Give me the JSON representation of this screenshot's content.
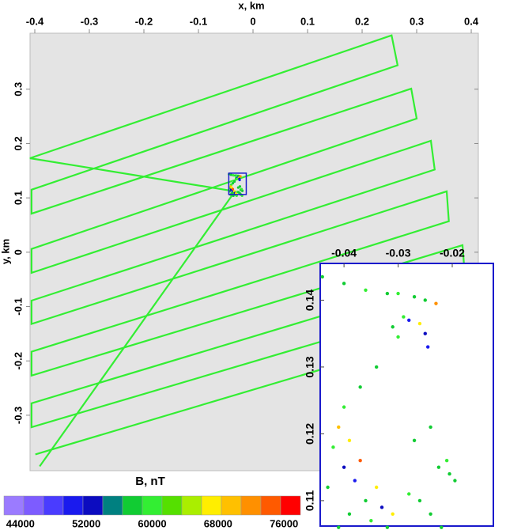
{
  "chart_data": [
    {
      "type": "line",
      "xlabel": "x, km",
      "ylabel": "y, km",
      "xlim": [
        -0.4087,
        0.413
      ],
      "ylim": [
        -0.402,
        0.403
      ],
      "xticks": [
        -0.4,
        -0.3,
        -0.2,
        -0.1,
        0,
        0.1,
        0.2,
        0.3,
        0.4
      ],
      "yticks": [
        -0.3,
        -0.2,
        -0.1,
        0,
        0.1,
        0.2,
        0.3
      ],
      "series": [
        {
          "color": "#33ee33",
          "x": [
            -0.391,
            -0.033,
            -0.409,
            0.254,
            0.265,
            -0.406,
            -0.406,
            0.29,
            0.3,
            -0.406,
            -0.406,
            0.326,
            0.333,
            -0.406,
            -0.406,
            0.355,
            0.359,
            -0.406,
            -0.406,
            0.384,
            0.388,
            -0.406,
            -0.406,
            0.406,
            0.406,
            -0.399
          ],
          "y": [
            -0.394,
            0.112,
            0.173,
            0.399,
            0.344,
            0.115,
            0.071,
            0.301,
            0.246,
            0.006,
            -0.038,
            0.205,
            0.152,
            -0.089,
            -0.132,
            0.112,
            0.057,
            -0.183,
            -0.227,
            0.013,
            -0.038,
            -0.278,
            -0.322,
            -0.081,
            -0.132,
            -0.372
          ]
        }
      ],
      "colorbar": {
        "label": "B, nT",
        "bins": [
          42000,
          44400,
          46800,
          49200,
          51600,
          54000,
          56400,
          58800,
          61200,
          63600,
          66000,
          68400,
          70800,
          73200,
          75600,
          78000
        ],
        "colors": [
          "#9b7bff",
          "#7d5cff",
          "#4a3cff",
          "#1a1aee",
          "#0c0cc0",
          "#008080",
          "#11cc33",
          "#33ee33",
          "#55e000",
          "#aaee00",
          "#ffee00",
          "#ffc000",
          "#ff9000",
          "#ff5a00",
          "#ff0000"
        ],
        "ticks": [
          44000,
          52000,
          60000,
          68000,
          76000
        ]
      }
    },
    {
      "type": "scatter",
      "xlim": [
        -0.0444,
        -0.0124
      ],
      "ylim": [
        0.1062,
        0.1455
      ],
      "xticks": [
        -0.04,
        -0.03,
        -0.02
      ],
      "yticks": [
        0.11,
        0.12,
        0.13,
        0.14
      ],
      "x": [
        -0.044,
        -0.04,
        -0.036,
        -0.032,
        -0.03,
        -0.027,
        -0.025,
        -0.029,
        -0.031,
        -0.028,
        -0.026,
        -0.025,
        -0.023,
        -0.0245,
        -0.03,
        -0.034,
        -0.037,
        -0.04,
        -0.043,
        -0.042,
        -0.041,
        -0.04,
        -0.039,
        -0.038,
        -0.037,
        -0.036,
        -0.035,
        -0.034,
        -0.033,
        -0.032,
        -0.031,
        -0.03,
        -0.036,
        -0.039,
        -0.041,
        -0.028,
        -0.026,
        -0.0225,
        -0.0205,
        -0.0195,
        -0.021,
        -0.024,
        -0.022,
        -0.02,
        -0.027,
        -0.024
      ],
      "y": [
        0.1435,
        0.1425,
        0.1415,
        0.141,
        0.141,
        0.1405,
        0.14,
        0.1375,
        0.136,
        0.137,
        0.1365,
        0.135,
        0.1395,
        0.133,
        0.1345,
        0.13,
        0.127,
        0.124,
        0.112,
        0.118,
        0.121,
        0.115,
        0.119,
        0.113,
        0.116,
        0.11,
        0.107,
        0.112,
        0.109,
        0.106,
        0.108,
        0.104,
        0.104,
        0.108,
        0.106,
        0.111,
        0.11,
        0.115,
        0.114,
        0.113,
        0.116,
        0.108,
        0.106,
        0.104,
        0.119,
        0.121
      ],
      "values": [
        58000,
        58500,
        59000,
        58000,
        59000,
        58500,
        57500,
        60000,
        57000,
        50000,
        68000,
        52000,
        72000,
        51000,
        59000,
        58000,
        58000,
        59000,
        58000,
        60000,
        70000,
        52000,
        66000,
        50000,
        74000,
        58000,
        59000,
        68000,
        52000,
        58000,
        66000,
        60000,
        58000,
        57000,
        58000,
        59000,
        58000,
        58000,
        58500,
        58000,
        59000,
        58000,
        58000,
        59000,
        58000,
        58000
      ]
    }
  ]
}
